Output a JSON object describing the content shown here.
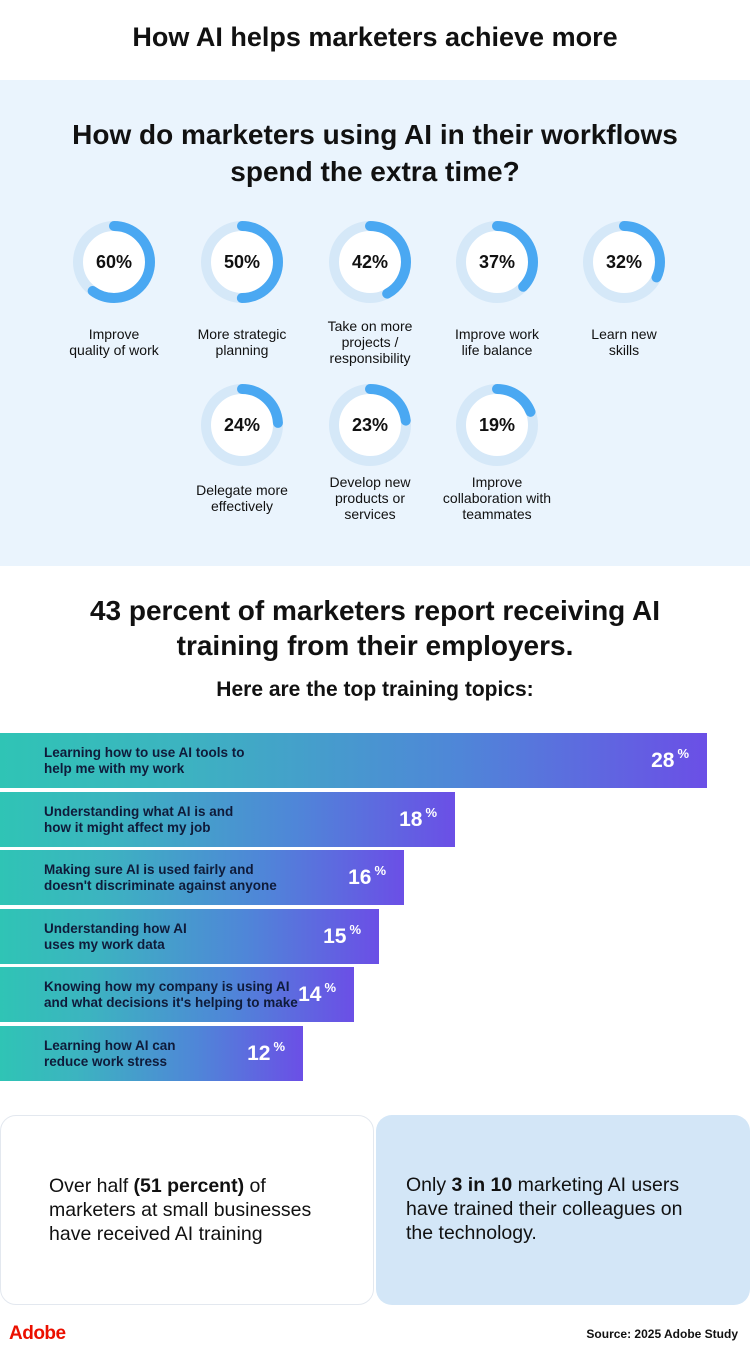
{
  "title": "How AI helps marketers achieve more",
  "panel": {
    "title": "How do marketers using AI in their workflows spend the extra time?"
  },
  "section2": {
    "title": "43 percent of marketers report receiving AI training from their employers.",
    "subtitle": "Here are the top training topics:"
  },
  "cards": {
    "left": {
      "before": "Over half ",
      "bold": "(51 percent)",
      "after": " of marketers at small businesses have received AI training"
    },
    "right": {
      "before": "Only ",
      "bold": "3 in 10",
      "after": " marketing AI users have trained their colleagues on the technology."
    }
  },
  "footer": {
    "logo": "Adobe",
    "source": "Source: 2025 Adobe Study"
  },
  "colors": {
    "ring_fill": "#4aa8f2",
    "ring_track": "#d5e8f8",
    "bar_start": "#2fc4b5",
    "bar_end": "#6b4fe6",
    "logo": "#eb1000"
  },
  "chart_data": [
    {
      "type": "pie",
      "title": "How do marketers using AI in their workflows spend the extra time?",
      "categories": [
        "Improve quality of work",
        "More strategic planning",
        "Take on more projects / responsibility",
        "Improve work life balance",
        "Learn new skills",
        "Delegate more effectively",
        "Develop new products or services",
        "Improve collaboration with teammates"
      ],
      "values": [
        60,
        50,
        42,
        37,
        32,
        24,
        23,
        19
      ],
      "value_labels": [
        "60%",
        "50%",
        "42%",
        "37%",
        "32%",
        "24%",
        "23%",
        "19%"
      ]
    },
    {
      "type": "bar",
      "title": "Here are the top training topics:",
      "categories": [
        "Learning how to use AI tools to help me with my work",
        "Understanding what AI is and how it might affect my job",
        "Making sure AI is used fairly and doesn't discriminate against anyone",
        "Understanding how AI uses my work data",
        "Knowing how my company is using AI and what decisions it's helping to make",
        "Learning how AI can reduce work stress"
      ],
      "values": [
        28,
        18,
        16,
        15,
        14,
        12
      ],
      "value_labels": [
        "28",
        "18",
        "16",
        "15",
        "14",
        "12"
      ],
      "unit": "%"
    }
  ]
}
